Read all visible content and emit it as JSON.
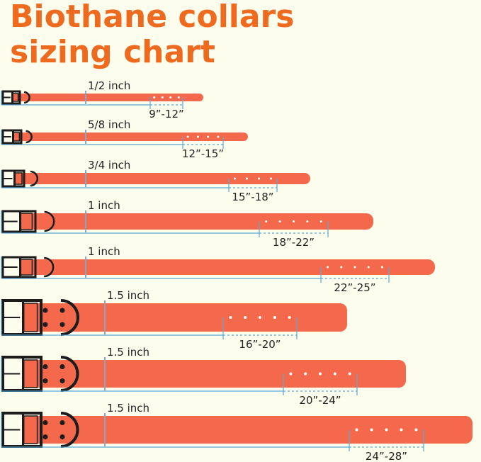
{
  "title": {
    "line1": "Biothane collars",
    "line2": "sizing chart"
  },
  "colors": {
    "title": "#ee6a1e",
    "strap": "#f4694b",
    "measure_line": "#5aa9d6",
    "hardware": "#1c1c1c",
    "background": "#fdfdee"
  },
  "collars": [
    {
      "width": "1/2 inch",
      "size": "9”-12”"
    },
    {
      "width": "5/8 inch",
      "size": "12”-15”"
    },
    {
      "width": "3/4 inch",
      "size": "15”-18”"
    },
    {
      "width": "1 inch",
      "size": "18”-22”"
    },
    {
      "width": "1 inch",
      "size": "22”-25”"
    },
    {
      "width": "1.5 inch",
      "size": "16”-20”"
    },
    {
      "width": "1.5 inch",
      "size": "20”-24”"
    },
    {
      "width": "1.5 inch",
      "size": "24”-28”"
    }
  ]
}
